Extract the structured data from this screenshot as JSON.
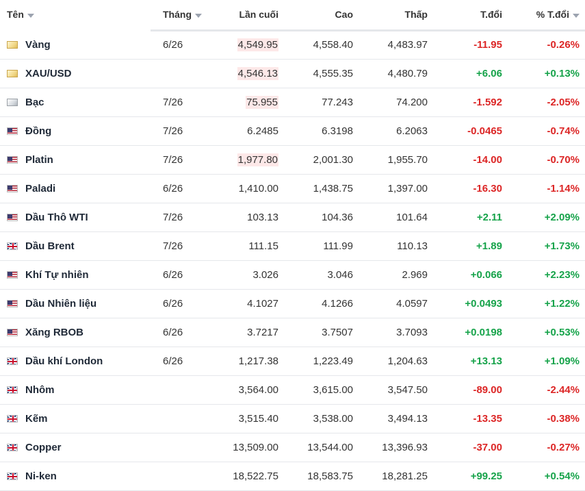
{
  "header": {
    "name": "Tên",
    "month": "Tháng",
    "last": "Lần cuối",
    "high": "Cao",
    "low": "Thấp",
    "change": "T.đổi",
    "change_pct": "% T.đổi"
  },
  "colors": {
    "positive": "#16a34a",
    "negative": "#dc2626",
    "flash_highlight": "#fde8e8"
  },
  "rows": [
    {
      "flag": "gold-icon",
      "name": "Vàng",
      "month": "6/26",
      "last": "4,549.95",
      "high": "4,558.40",
      "low": "4,483.97",
      "change": "-11.95",
      "change_pct": "-0.26%",
      "direction": "down",
      "last_highlight": true
    },
    {
      "flag": "gold-icon",
      "name": "XAU/USD",
      "month": "",
      "last": "4,546.13",
      "high": "4,555.35",
      "low": "4,480.79",
      "change": "+6.06",
      "change_pct": "+0.13%",
      "direction": "up",
      "last_highlight": true
    },
    {
      "flag": "silver-icon",
      "name": "Bạc",
      "month": "7/26",
      "last": "75.955",
      "high": "77.243",
      "low": "74.200",
      "change": "-1.592",
      "change_pct": "-2.05%",
      "direction": "down",
      "last_highlight": true
    },
    {
      "flag": "us-flag-icon",
      "name": "Đồng",
      "month": "7/26",
      "last": "6.2485",
      "high": "6.3198",
      "low": "6.2063",
      "change": "-0.0465",
      "change_pct": "-0.74%",
      "direction": "down",
      "last_highlight": false
    },
    {
      "flag": "us-flag-icon",
      "name": "Platin",
      "month": "7/26",
      "last": "1,977.80",
      "high": "2,001.30",
      "low": "1,955.70",
      "change": "-14.00",
      "change_pct": "-0.70%",
      "direction": "down",
      "last_highlight": true
    },
    {
      "flag": "us-flag-icon",
      "name": "Paladi",
      "month": "6/26",
      "last": "1,410.00",
      "high": "1,438.75",
      "low": "1,397.00",
      "change": "-16.30",
      "change_pct": "-1.14%",
      "direction": "down",
      "last_highlight": false
    },
    {
      "flag": "us-flag-icon",
      "name": "Dầu Thô WTI",
      "month": "7/26",
      "last": "103.13",
      "high": "104.36",
      "low": "101.64",
      "change": "+2.11",
      "change_pct": "+2.09%",
      "direction": "up",
      "last_highlight": false
    },
    {
      "flag": "uk-flag-icon",
      "name": "Dầu Brent",
      "month": "7/26",
      "last": "111.15",
      "high": "111.99",
      "low": "110.13",
      "change": "+1.89",
      "change_pct": "+1.73%",
      "direction": "up",
      "last_highlight": false
    },
    {
      "flag": "us-flag-icon",
      "name": "Khí Tự nhiên",
      "month": "6/26",
      "last": "3.026",
      "high": "3.046",
      "low": "2.969",
      "change": "+0.066",
      "change_pct": "+2.23%",
      "direction": "up",
      "last_highlight": false
    },
    {
      "flag": "us-flag-icon",
      "name": "Dầu Nhiên liệu",
      "month": "6/26",
      "last": "4.1027",
      "high": "4.1266",
      "low": "4.0597",
      "change": "+0.0493",
      "change_pct": "+1.22%",
      "direction": "up",
      "last_highlight": false
    },
    {
      "flag": "us-flag-icon",
      "name": "Xăng RBOB",
      "month": "6/26",
      "last": "3.7217",
      "high": "3.7507",
      "low": "3.7093",
      "change": "+0.0198",
      "change_pct": "+0.53%",
      "direction": "up",
      "last_highlight": false
    },
    {
      "flag": "uk-flag-icon",
      "name": "Dầu khí London",
      "month": "6/26",
      "last": "1,217.38",
      "high": "1,223.49",
      "low": "1,204.63",
      "change": "+13.13",
      "change_pct": "+1.09%",
      "direction": "up",
      "last_highlight": false
    },
    {
      "flag": "uk-flag-icon",
      "name": "Nhôm",
      "month": "",
      "last": "3,564.00",
      "high": "3,615.00",
      "low": "3,547.50",
      "change": "-89.00",
      "change_pct": "-2.44%",
      "direction": "down",
      "last_highlight": false
    },
    {
      "flag": "uk-flag-icon",
      "name": "Kẽm",
      "month": "",
      "last": "3,515.40",
      "high": "3,538.00",
      "low": "3,494.13",
      "change": "-13.35",
      "change_pct": "-0.38%",
      "direction": "down",
      "last_highlight": false
    },
    {
      "flag": "uk-flag-icon",
      "name": "Copper",
      "month": "",
      "last": "13,509.00",
      "high": "13,544.00",
      "low": "13,396.93",
      "change": "-37.00",
      "change_pct": "-0.27%",
      "direction": "down",
      "last_highlight": false
    },
    {
      "flag": "uk-flag-icon",
      "name": "Ni-ken",
      "month": "",
      "last": "18,522.75",
      "high": "18,583.75",
      "low": "18,281.25",
      "change": "+99.25",
      "change_pct": "+0.54%",
      "direction": "up",
      "last_highlight": false
    }
  ]
}
